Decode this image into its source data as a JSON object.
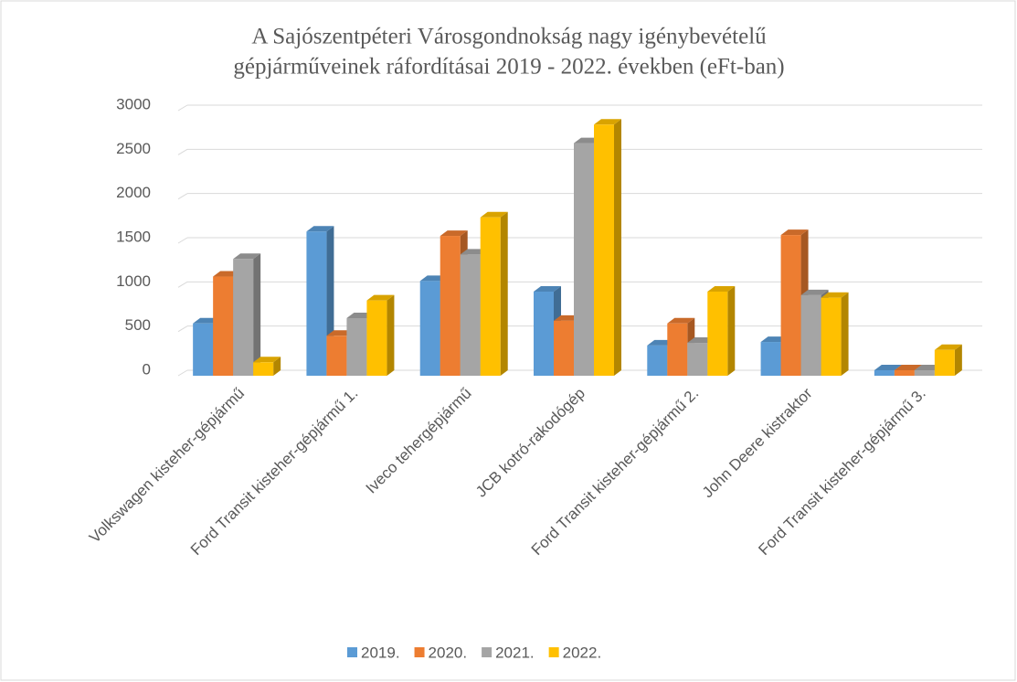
{
  "chart_data": {
    "type": "bar3d",
    "title": [
      "A Sajószentpéteri Városgondnokság nagy igénybevételű",
      "gépjárműveinek ráfordításai 2019 - 2022. években (eFt-ban)"
    ],
    "categories": [
      "Volkswagen kisteher-gépjármű",
      "Ford Transit kisteher-gépjármű 1.",
      "Iveco tehergépjármű",
      "JCB kotró-rakodógép",
      "Ford Transit kisteher-gépjármű 2.",
      "John Deere kistraktor",
      "Ford Transit kisteher-gépjármű 3."
    ],
    "series": [
      {
        "name": "2019.",
        "color": "#5b9bd5",
        "values": [
          530,
          1570,
          1010,
          890,
          280,
          320,
          0
        ]
      },
      {
        "name": "2020.",
        "color": "#ed7d31",
        "values": [
          1060,
          390,
          1520,
          560,
          530,
          1530,
          0
        ]
      },
      {
        "name": "2021.",
        "color": "#a5a5a5",
        "values": [
          1260,
          590,
          1310,
          2570,
          310,
          850,
          0
        ]
      },
      {
        "name": "2022.",
        "color": "#ffc000",
        "values": [
          90,
          790,
          1730,
          2780,
          890,
          820,
          230
        ]
      }
    ],
    "ylim": [
      0,
      3000
    ],
    "yticks": [
      0,
      500,
      1000,
      1500,
      2000,
      2500,
      3000
    ],
    "grid": true,
    "legend": "bottom"
  }
}
